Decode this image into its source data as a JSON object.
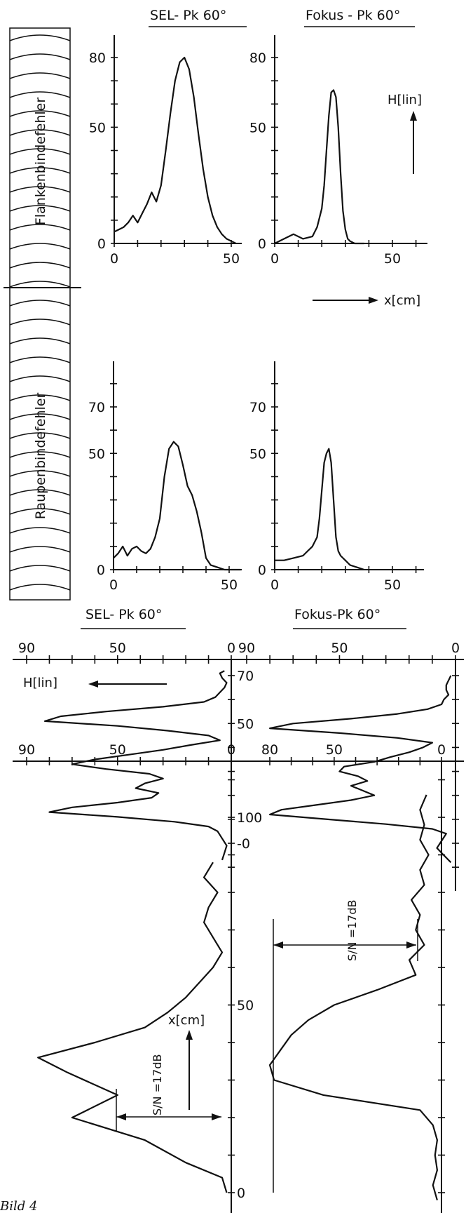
{
  "figure_caption": "Bild 4",
  "labels": {
    "weld_upper": "Flankenbindefehler",
    "weld_lower": "Raupenbindefehler",
    "x_arrow_label": "x[cm]",
    "h_arrow_label": "H[lin]",
    "sn_label": "S/N =17dB"
  },
  "chart_data": [
    {
      "id": "p1",
      "type": "line",
      "title": "SEL- Pk 60°",
      "yticks": [
        "0",
        "50",
        "80"
      ],
      "xticks": [
        "0",
        "50"
      ],
      "xlim": [
        0,
        60
      ],
      "ylim": [
        0,
        85
      ],
      "x": [
        0,
        2,
        4,
        6,
        8,
        10,
        12,
        14,
        16,
        18,
        20,
        22,
        24,
        26,
        28,
        30,
        32,
        34,
        36,
        38,
        40,
        42,
        44,
        46,
        48,
        50,
        52
      ],
      "values": [
        5,
        6,
        7,
        9,
        12,
        9,
        13,
        17,
        22,
        18,
        25,
        40,
        56,
        70,
        78,
        80,
        75,
        63,
        47,
        32,
        20,
        12,
        7,
        4,
        2,
        1,
        0
      ]
    },
    {
      "id": "p2",
      "type": "line",
      "title": "Fokus - Pk 60°",
      "yticks": [
        "0",
        "50",
        "80"
      ],
      "xticks": [
        "0",
        "50"
      ],
      "xlim": [
        0,
        60
      ],
      "ylim": [
        0,
        85
      ],
      "x": [
        0,
        4,
        8,
        12,
        16,
        18,
        20,
        21,
        22,
        23,
        24,
        25,
        26,
        27,
        28,
        29,
        30,
        31,
        32,
        34,
        38
      ],
      "values": [
        0,
        2,
        4,
        2,
        3,
        7,
        15,
        25,
        40,
        55,
        65,
        66,
        63,
        50,
        30,
        14,
        6,
        2,
        1,
        0,
        0
      ]
    },
    {
      "id": "p3",
      "type": "line",
      "yticks": [
        "0",
        "50",
        "70"
      ],
      "xticks": [
        "0",
        "50"
      ],
      "xlim": [
        0,
        60
      ],
      "ylim": [
        0,
        80
      ],
      "x": [
        0,
        2,
        4,
        6,
        8,
        10,
        12,
        14,
        16,
        18,
        20,
        22,
        24,
        26,
        28,
        30,
        32,
        34,
        36,
        38,
        40,
        42,
        45,
        48,
        50,
        55
      ],
      "values": [
        5,
        7,
        10,
        6,
        9,
        10,
        8,
        7,
        9,
        14,
        22,
        40,
        52,
        55,
        53,
        45,
        36,
        32,
        25,
        16,
        5,
        2,
        1,
        0,
        0,
        0
      ]
    },
    {
      "id": "p4",
      "type": "line",
      "yticks": [
        "0",
        "50",
        "70"
      ],
      "xticks": [
        "0",
        "50"
      ],
      "xlim": [
        0,
        60
      ],
      "ylim": [
        0,
        80
      ],
      "x": [
        0,
        4,
        8,
        12,
        14,
        16,
        18,
        19,
        20,
        21,
        22,
        23,
        24,
        25,
        26,
        27,
        28,
        29,
        30,
        32,
        38
      ],
      "values": [
        4,
        4,
        5,
        6,
        8,
        10,
        14,
        22,
        34,
        46,
        50,
        52,
        46,
        30,
        14,
        8,
        6,
        5,
        4,
        2,
        0
      ]
    },
    {
      "id": "p5",
      "type": "line",
      "title": "SEL- Pk 60°",
      "xlabel": "H[lin]",
      "xticks": [
        "90",
        "50",
        "0"
      ],
      "yticks": [
        "0",
        "50",
        "70"
      ],
      "xlim": [
        90,
        0
      ],
      "ylim": [
        -10,
        75
      ],
      "y": [
        -7,
        -4,
        -1,
        2,
        5,
        7,
        9,
        11,
        13,
        15,
        17,
        19,
        21,
        23,
        25,
        27,
        29,
        31,
        33,
        35,
        37,
        39,
        41,
        43,
        45,
        47,
        49,
        51,
        53,
        55,
        57,
        59,
        61,
        63,
        65,
        67,
        69,
        71,
        72
      ],
      "values": [
        4,
        3,
        2,
        4,
        6,
        10,
        25,
        50,
        80,
        70,
        50,
        35,
        32,
        42,
        38,
        30,
        36,
        55,
        70,
        60,
        45,
        30,
        18,
        5,
        10,
        28,
        50,
        82,
        75,
        55,
        30,
        12,
        7,
        5,
        3,
        2,
        4,
        5,
        3
      ]
    },
    {
      "id": "p6",
      "type": "line",
      "title": "Fokus-Pk 60°",
      "xticks": [
        "90",
        "50",
        "0"
      ],
      "xlim": [
        90,
        0
      ],
      "ylim": [
        -10,
        75
      ],
      "y": [
        -8,
        -5,
        -2,
        1,
        4,
        6,
        8,
        10,
        12,
        14,
        16,
        18,
        20,
        22,
        24,
        26,
        28,
        30,
        32,
        34,
        36,
        38,
        40,
        42,
        44,
        46,
        48,
        50,
        52,
        54,
        56,
        58,
        60,
        62,
        64,
        66,
        68,
        70
      ],
      "values": [
        2,
        5,
        8,
        6,
        4,
        10,
        30,
        55,
        80,
        75,
        60,
        45,
        35,
        40,
        45,
        38,
        42,
        50,
        48,
        35,
        28,
        20,
        14,
        10,
        25,
        50,
        80,
        70,
        45,
        25,
        12,
        6,
        5,
        3,
        4,
        4,
        3,
        2
      ]
    },
    {
      "id": "p7",
      "type": "line",
      "xticks": [
        "90",
        "50",
        "0"
      ],
      "xlim": [
        90,
        0
      ],
      "ylim": [
        0,
        110
      ],
      "annotation": "S/N =17dB",
      "y": [
        0,
        4,
        8,
        14,
        20,
        26,
        32,
        36,
        40,
        44,
        48,
        52,
        56,
        60,
        64,
        68,
        72,
        76,
        80,
        84,
        88
      ],
      "values": [
        2,
        4,
        20,
        38,
        70,
        50,
        72,
        85,
        60,
        38,
        28,
        20,
        14,
        8,
        4,
        8,
        12,
        10,
        6,
        12,
        8
      ]
    },
    {
      "id": "p8",
      "type": "line",
      "xticks": [
        "80",
        "50",
        "0"
      ],
      "yticks": [
        "0",
        "50",
        "100"
      ],
      "xlim": [
        80,
        0
      ],
      "ylim": [
        -5,
        110
      ],
      "annotation": "S/N =17dB",
      "y": [
        -2,
        2,
        6,
        10,
        14,
        18,
        22,
        26,
        30,
        34,
        38,
        42,
        46,
        50,
        54,
        58,
        62,
        66,
        70,
        74,
        78,
        82,
        86,
        90,
        94,
        98,
        102,
        106
      ],
      "values": [
        2,
        4,
        2,
        3,
        2,
        4,
        10,
        55,
        78,
        80,
        75,
        70,
        62,
        50,
        30,
        12,
        15,
        8,
        12,
        10,
        14,
        8,
        10,
        6,
        10,
        8,
        10,
        7
      ]
    }
  ]
}
